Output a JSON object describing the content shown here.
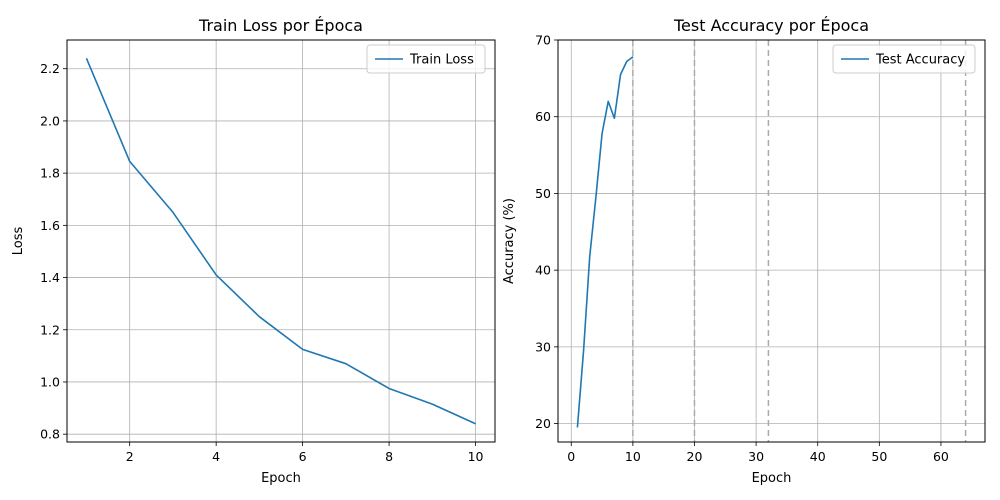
{
  "chart_data": [
    {
      "type": "line",
      "title": "Train Loss por Época",
      "xlabel": "Epoch",
      "ylabel": "Loss",
      "xlim": [
        0.55,
        10.45
      ],
      "ylim": [
        0.77,
        2.31
      ],
      "xticks": [
        2,
        4,
        6,
        8,
        10
      ],
      "yticks": [
        0.8,
        1.0,
        1.2,
        1.4,
        1.6,
        1.8,
        2.0,
        2.2
      ],
      "xtick_labels": [
        "2",
        "4",
        "6",
        "8",
        "10"
      ],
      "ytick_labels": [
        "0.8",
        "1.0",
        "1.2",
        "1.4",
        "1.6",
        "1.8",
        "2.0",
        "2.2"
      ],
      "grid": true,
      "legend": "upper-right",
      "series": [
        {
          "name": "Train Loss",
          "color": "#1f77b4",
          "x": [
            1,
            2,
            3,
            4,
            5,
            6,
            7,
            8,
            9,
            10
          ],
          "y": [
            2.24,
            1.845,
            1.65,
            1.41,
            1.25,
            1.125,
            1.07,
            0.975,
            0.915,
            0.84
          ]
        }
      ]
    },
    {
      "type": "line",
      "title": "Test Accuracy por Época",
      "xlabel": "Epoch",
      "ylabel": "Accuracy (%)",
      "xlim": [
        -2.15,
        67.15
      ],
      "ylim": [
        17.6,
        70.0
      ],
      "xticks": [
        0,
        10,
        20,
        30,
        40,
        50,
        60
      ],
      "yticks": [
        20,
        30,
        40,
        50,
        60,
        70
      ],
      "xtick_labels": [
        "0",
        "10",
        "20",
        "30",
        "40",
        "50",
        "60"
      ],
      "ytick_labels": [
        "20",
        "30",
        "40",
        "50",
        "60",
        "70"
      ],
      "grid": true,
      "legend": "upper-right",
      "vlines": [
        10,
        20,
        32,
        64
      ],
      "vline_color": "#aaaaaa",
      "series": [
        {
          "name": "Test Accuracy",
          "color": "#1f77b4",
          "x": [
            1,
            2,
            3,
            4,
            5,
            6,
            7,
            8,
            9,
            10
          ],
          "y": [
            19.5,
            29.5,
            41.8,
            49.5,
            57.8,
            62.0,
            59.8,
            65.5,
            67.2,
            67.8
          ]
        }
      ]
    }
  ]
}
